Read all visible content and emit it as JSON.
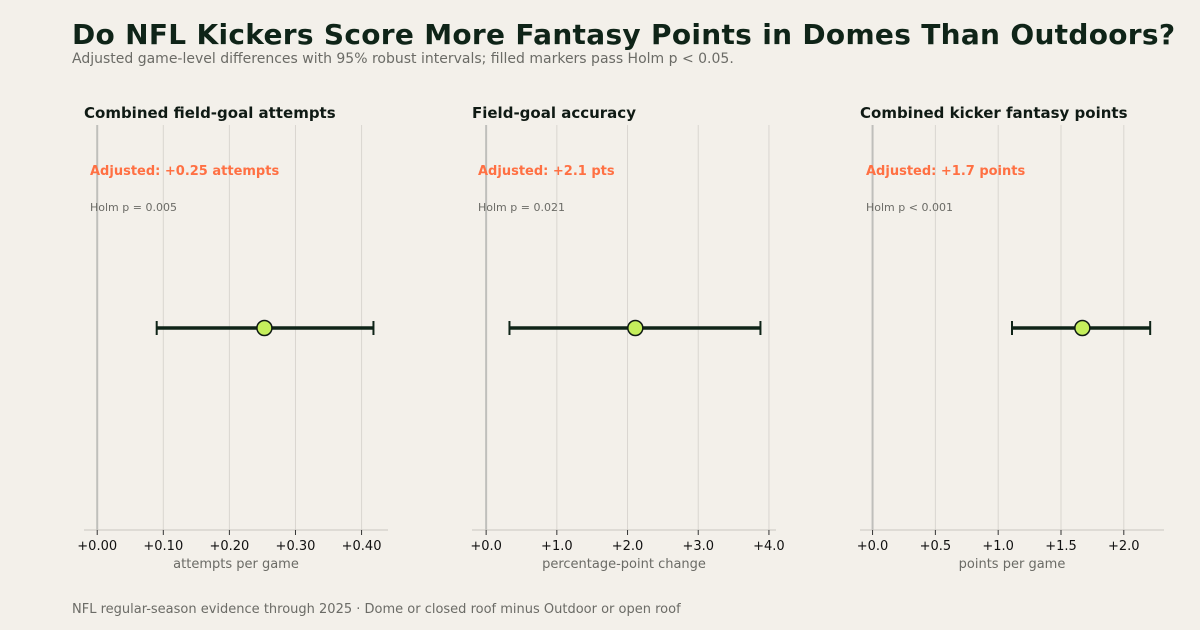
{
  "title": "Do NFL Kickers Score More Fantasy Points in Domes Than Outdoors?",
  "subtitle": "Adjusted game-level differences with 95% robust intervals; filled markers pass Holm p < 0.05.",
  "footer": "NFL regular-season evidence through 2025 · Dome or closed roof minus Outdoor or open roof",
  "colors": {
    "background": "#f3f0ea",
    "marker_fill": "#c5ef5c",
    "interval": "#0f2418",
    "annotation": "#ff7043",
    "gridline": "#d9d6d0",
    "zero_line": "#bfbfbb"
  },
  "chart_data": [
    {
      "type": "scatter",
      "title": "Combined field-goal attempts",
      "xlabel": "attempts per game",
      "annotation": "Adjusted: +0.25 attempts",
      "p_label": "Holm p = 0.005",
      "xlim": [
        -0.02,
        0.44
      ],
      "ticks": [
        0,
        0.1,
        0.2,
        0.3,
        0.4
      ],
      "tick_labels": [
        "+0.00",
        "+0.10",
        "+0.20",
        "+0.30",
        "+0.40"
      ],
      "estimate": 0.253,
      "ci": [
        0.09,
        0.418
      ],
      "significant": true
    },
    {
      "type": "scatter",
      "title": "Field-goal accuracy",
      "xlabel": "percentage-point change",
      "annotation": "Adjusted: +2.1 pts",
      "p_label": "Holm p = 0.021",
      "xlim": [
        -0.2,
        4.1
      ],
      "ticks": [
        0,
        1,
        2,
        3,
        4
      ],
      "tick_labels": [
        "+0.0",
        "+1.0",
        "+2.0",
        "+3.0",
        "+4.0"
      ],
      "estimate": 2.11,
      "ci": [
        0.33,
        3.88
      ],
      "significant": true
    },
    {
      "type": "scatter",
      "title": "Combined kicker fantasy points",
      "xlabel": "points per game",
      "annotation": "Adjusted: +1.7 points",
      "p_label": "Holm p < 0.001",
      "xlim": [
        -0.1,
        2.32
      ],
      "ticks": [
        0,
        0.5,
        1,
        1.5,
        2
      ],
      "tick_labels": [
        "+0.0",
        "+0.5",
        "+1.0",
        "+1.5",
        "+2.0"
      ],
      "estimate": 1.67,
      "ci": [
        1.11,
        2.21
      ],
      "significant": true
    }
  ]
}
